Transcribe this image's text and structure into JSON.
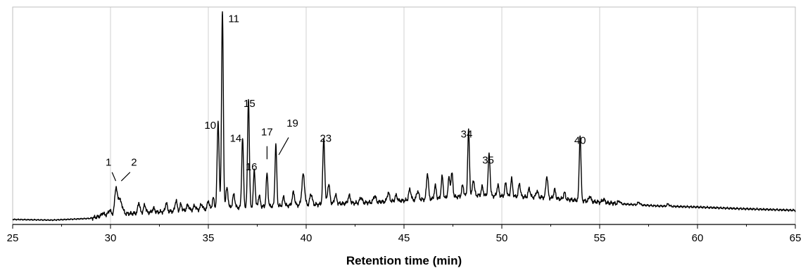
{
  "chart_data": {
    "type": "line",
    "title": "",
    "xlabel": "Retention time (min)",
    "ylabel": "",
    "xlim": [
      25,
      65
    ],
    "xticks": [
      25,
      30,
      35,
      40,
      45,
      50,
      55,
      60,
      65
    ],
    "ylim": [
      0,
      100
    ],
    "grid": {
      "vertical": true,
      "horizontal": false
    },
    "baseline": [
      [
        25,
        2.3
      ],
      [
        27,
        2.0
      ],
      [
        29,
        2.8
      ],
      [
        30,
        5
      ],
      [
        31,
        5
      ],
      [
        33,
        6
      ],
      [
        35,
        7
      ],
      [
        37,
        8
      ],
      [
        40,
        9
      ],
      [
        43,
        10
      ],
      [
        45,
        11
      ],
      [
        47,
        12
      ],
      [
        48.5,
        13.5
      ],
      [
        50,
        13
      ],
      [
        52,
        12.5
      ],
      [
        54,
        11
      ],
      [
        56,
        9.5
      ],
      [
        58,
        8.5
      ],
      [
        60,
        8
      ],
      [
        62,
        7.3
      ],
      [
        65,
        6.5
      ]
    ],
    "peaks": [
      [
        29.6,
        1.2,
        0.05
      ],
      [
        29.95,
        1.8,
        0.05
      ],
      [
        30.28,
        12,
        0.06
      ],
      [
        30.45,
        7,
        0.07
      ],
      [
        30.6,
        3,
        0.06
      ],
      [
        31.45,
        5,
        0.05
      ],
      [
        31.75,
        3.5,
        0.06
      ],
      [
        32.2,
        1.8,
        0.06
      ],
      [
        32.85,
        4,
        0.05
      ],
      [
        33.35,
        5,
        0.05
      ],
      [
        33.6,
        3,
        0.05
      ],
      [
        33.95,
        2.5,
        0.06
      ],
      [
        34.3,
        2,
        0.06
      ],
      [
        34.65,
        2.5,
        0.06
      ],
      [
        35.0,
        4,
        0.05
      ],
      [
        35.25,
        5,
        0.05
      ],
      [
        35.5,
        40,
        0.05
      ],
      [
        35.72,
        91,
        0.045
      ],
      [
        35.95,
        9,
        0.06
      ],
      [
        36.3,
        6,
        0.06
      ],
      [
        36.75,
        32,
        0.045
      ],
      [
        37.05,
        50,
        0.045
      ],
      [
        37.35,
        17,
        0.045
      ],
      [
        37.6,
        5,
        0.05
      ],
      [
        38.0,
        15,
        0.045
      ],
      [
        38.45,
        28,
        0.045
      ],
      [
        38.85,
        4,
        0.05
      ],
      [
        39.35,
        6,
        0.06
      ],
      [
        39.85,
        14,
        0.07
      ],
      [
        40.25,
        5,
        0.06
      ],
      [
        40.9,
        30,
        0.05
      ],
      [
        41.15,
        9,
        0.06
      ],
      [
        41.5,
        4,
        0.06
      ],
      [
        42.2,
        3.5,
        0.06
      ],
      [
        42.8,
        2.5,
        0.06
      ],
      [
        43.5,
        3,
        0.06
      ],
      [
        44.2,
        4,
        0.06
      ],
      [
        44.6,
        2.5,
        0.06
      ],
      [
        45.3,
        5,
        0.06
      ],
      [
        45.7,
        4,
        0.06
      ],
      [
        46.2,
        12,
        0.05
      ],
      [
        46.6,
        6,
        0.05
      ],
      [
        46.95,
        10,
        0.05
      ],
      [
        47.3,
        9,
        0.05
      ],
      [
        47.45,
        11,
        0.05
      ],
      [
        48.0,
        5,
        0.05
      ],
      [
        48.3,
        30,
        0.045
      ],
      [
        48.55,
        7,
        0.05
      ],
      [
        49.0,
        4,
        0.05
      ],
      [
        49.35,
        19,
        0.05
      ],
      [
        49.8,
        5,
        0.05
      ],
      [
        50.2,
        6,
        0.05
      ],
      [
        50.5,
        8,
        0.05
      ],
      [
        50.9,
        6,
        0.05
      ],
      [
        51.4,
        4,
        0.05
      ],
      [
        51.8,
        3,
        0.05
      ],
      [
        52.3,
        10,
        0.05
      ],
      [
        52.7,
        4,
        0.05
      ],
      [
        53.2,
        3,
        0.05
      ],
      [
        54.0,
        30,
        0.045
      ],
      [
        54.5,
        2.5,
        0.05
      ],
      [
        55.2,
        1.5,
        0.06
      ],
      [
        56.0,
        1.2,
        0.06
      ],
      [
        57.0,
        1.2,
        0.06
      ],
      [
        58.5,
        1,
        0.06
      ]
    ],
    "peak_labels": [
      {
        "label": "1",
        "x": 29.9,
        "y": 27,
        "lx1": 30.08,
        "ly1": 24,
        "lx2": 30.27,
        "ly2": 20
      },
      {
        "label": "2",
        "x": 31.2,
        "y": 27,
        "lx1": 31.0,
        "ly1": 24,
        "lx2": 30.55,
        "ly2": 20
      },
      {
        "label": "10",
        "x": 35.1,
        "y": 44
      },
      {
        "label": "11",
        "x": 36.3,
        "y": 93
      },
      {
        "label": "14",
        "x": 36.4,
        "y": 38
      },
      {
        "label": "15",
        "x": 37.1,
        "y": 54
      },
      {
        "label": "16",
        "x": 37.2,
        "y": 25
      },
      {
        "label": "17",
        "x": 38.0,
        "y": 41,
        "lx1": 38.0,
        "ly1": 36,
        "lx2": 38.0,
        "ly2": 30
      },
      {
        "label": "19",
        "x": 39.3,
        "y": 45,
        "lx1": 39.1,
        "ly1": 40,
        "lx2": 38.6,
        "ly2": 32
      },
      {
        "label": "23",
        "x": 41.0,
        "y": 38
      },
      {
        "label": "34",
        "x": 48.2,
        "y": 40
      },
      {
        "label": "35",
        "x": 49.3,
        "y": 28
      },
      {
        "label": "40",
        "x": 54.0,
        "y": 37
      }
    ]
  }
}
